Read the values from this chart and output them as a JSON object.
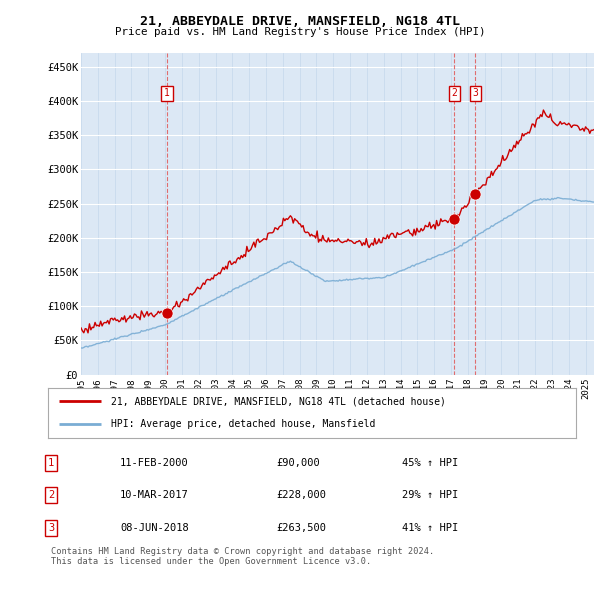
{
  "title": "21, ABBEYDALE DRIVE, MANSFIELD, NG18 4TL",
  "subtitle": "Price paid vs. HM Land Registry's House Price Index (HPI)",
  "xlim": [
    1995.0,
    2025.5
  ],
  "ylim": [
    0,
    470000
  ],
  "yticks": [
    0,
    50000,
    100000,
    150000,
    200000,
    250000,
    300000,
    350000,
    400000,
    450000
  ],
  "ytick_labels": [
    "£0",
    "£50K",
    "£100K",
    "£150K",
    "£200K",
    "£250K",
    "£300K",
    "£350K",
    "£400K",
    "£450K"
  ],
  "sale_dates": [
    2000.12,
    2017.19,
    2018.44
  ],
  "sale_prices": [
    90000,
    228000,
    263500
  ],
  "sale_labels": [
    "1",
    "2",
    "3"
  ],
  "sale_color": "#cc0000",
  "hpi_color": "#7aadd4",
  "property_color": "#cc0000",
  "vline_color": "#e06060",
  "plot_bg_color": "#dce8f5",
  "legend_property": "21, ABBEYDALE DRIVE, MANSFIELD, NG18 4TL (detached house)",
  "legend_hpi": "HPI: Average price, detached house, Mansfield",
  "table_rows": [
    [
      "1",
      "11-FEB-2000",
      "£90,000",
      "45% ↑ HPI"
    ],
    [
      "2",
      "10-MAR-2017",
      "£228,000",
      "29% ↑ HPI"
    ],
    [
      "3",
      "08-JUN-2018",
      "£263,500",
      "41% ↑ HPI"
    ]
  ],
  "footer": "Contains HM Land Registry data © Crown copyright and database right 2024.\nThis data is licensed under the Open Government Licence v3.0.",
  "xtick_years": [
    1995,
    1996,
    1997,
    1998,
    1999,
    2000,
    2001,
    2002,
    2003,
    2004,
    2005,
    2006,
    2007,
    2008,
    2009,
    2010,
    2011,
    2012,
    2013,
    2014,
    2015,
    2016,
    2017,
    2018,
    2019,
    2020,
    2021,
    2022,
    2023,
    2024,
    2025
  ]
}
